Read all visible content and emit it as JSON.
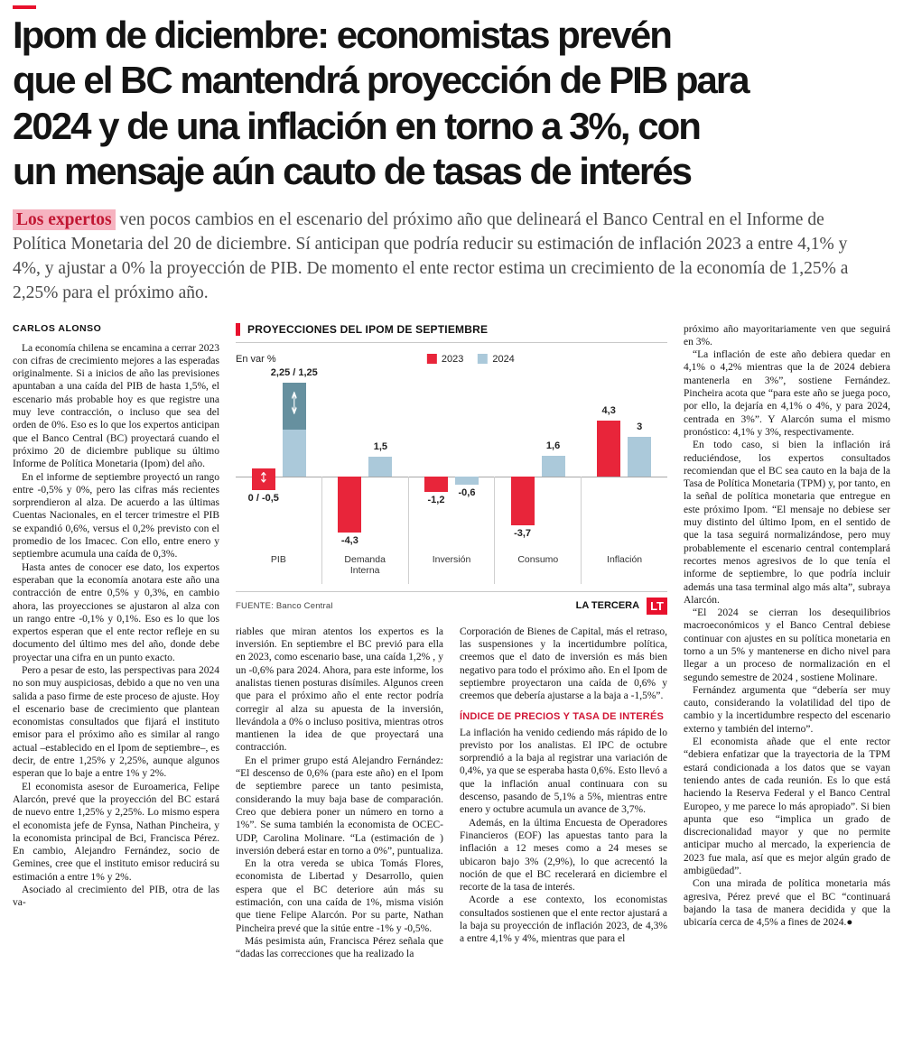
{
  "headline": {
    "lines": [
      "Ipom de diciembre: economistas prevén",
      "que el BC mantendrá proyección de PIB para",
      "2024 y de una inflación en torno a 3%, con",
      "un mensaje aún cauto de tasas de interés"
    ]
  },
  "lede": {
    "highlight": "Los expertos",
    "text": " ven pocos cambios en el escenario del próximo año que delineará el Banco Central en el Informe de Política Monetaria del 20 de diciembre. Sí anticipan que podría reducir su estimación de inflación 2023 a entre 4,1% y 4%, y ajustar a 0% la proyección de PIB. De momento el ente rector estima un crecimiento de la economía de 1,25% a 2,25% para el próximo año."
  },
  "byline": "CARLOS ALONSO",
  "columns": {
    "col1": [
      "La economía chilena se encamina a cerrar 2023 con cifras de crecimiento mejores a las esperadas originalmente. Si a inicios de año las previsiones apuntaban a una caída del PIB de hasta 1,5%, el escenario más probable hoy es que registre una muy leve contracción, o incluso que sea del orden de 0%. Eso es lo que los expertos anticipan que el Banco Central (BC) proyectará cuando el próximo 20 de diciembre publique su último Informe de Política Monetaria (Ipom) del año.",
      "En el informe de septiembre proyectó un rango entre -0,5% y 0%, pero las cifras más recientes sorprendieron al alza. De acuerdo a las últimas Cuentas Nacionales, en el tercer trimestre el PIB se expandió 0,6%, versus el 0,2% previsto con el promedio de los Imacec. Con ello, entre enero y septiembre acumula una caída de 0,3%.",
      "Hasta antes de conocer ese dato, los expertos esperaban que la economía anotara este año una contracción de entre 0,5% y 0,3%, en cambio ahora, las proyecciones se ajustaron al alza con un rango entre -0,1% y 0,1%. Eso es lo que los expertos esperan que el ente rector refleje en su documento del último mes del año, donde debe proyectar una cifra en un punto exacto.",
      "Pero a pesar de esto, las perspectivas para 2024 no son muy auspiciosas, debido a que no ven una salida a paso firme de este proceso de ajuste. Hoy el escenario base de crecimiento que plantean economistas consultados que fijará el instituto emisor para el próximo año es similar al rango actual –establecido en el Ipom de septiembre–, es decir, de entre 1,25% y 2,25%, aunque algunos esperan que lo baje a entre 1% y 2%.",
      "El economista asesor de Euroamerica, Felipe Alarcón, prevé que la proyección del BC estará de nuevo entre 1,25% y 2,25%. Lo mismo espera el economista jefe de Fynsa, Nathan Pincheira, y la economista principal de Bci, Francisca Pérez. En cambio, Alejandro Fernández, socio de Gemines, cree que el instituto emisor reducirá su estimación a entre 1% y 2%.",
      "Asociado al crecimiento del PIB, otra de las va-"
    ],
    "col2": [
      "riables que miran atentos los expertos es la inversión. En septiembre el BC previó para ella en 2023, como escenario base, una caída 1,2% , y un -0,6% para 2024. Ahora, para este informe, los analistas tienen posturas disímiles. Algunos creen que para el próximo año el ente rector podría corregir al alza su apuesta de la inversión, llevándola a 0% o incluso positiva, mientras otros mantienen la idea de que proyectará una contracción.",
      "En el primer grupo está Alejandro Fernández: “El descenso de 0,6% (para este año) en el Ipom de septiembre parece un tanto pesimista, considerando la muy baja base de comparación. Creo que debiera poner un número en torno a 1%”. Se suma también la economista de OCEC-UDP, Carolina Molinare. “La (estimación de ) inversión deberá estar en torno a 0%”, puntualiza.",
      "En la otra vereda se ubica Tomás Flores, economista de Libertad y Desarrollo, quien espera que el BC deteriore aún más su estimación, con una caída de 1%, misma visión que tiene Felipe Alarcón. Por su parte, Nathan Pincheira prevé que la sitúe entre -1% y -0,5%.",
      "Más pesimista aún, Francisca Pérez señala que “dadas las correcciones que ha realizado la"
    ],
    "col3_pre": [
      "Corporación de Bienes de Capital, más el retraso, las suspensiones y la incertidumbre política, creemos que el dato de inversión es más bien negativo para todo el próximo año. En el Ipom de septiembre proyectaron una caída de 0,6% y creemos que debería ajustarse a la baja a -1,5%”."
    ],
    "col3_subhead": "ÍNDICE DE PRECIOS Y TASA DE INTERÉS",
    "col3_post": [
      "La inflación ha venido cediendo más rápido de lo previsto por los analistas. El IPC de octubre sorprendió a la baja al registrar una variación de 0,4%, ya que se esperaba hasta 0,6%. Esto llevó a que la inflación anual continuara con su descenso, pasando de 5,1% a 5%, mientras entre enero y octubre acumula un avance de 3,7%.",
      "Además, en la última Encuesta de Operadores Financieros (EOF) las apuestas tanto para la inflación a 12 meses como a 24 meses se ubicaron bajo 3% (2,9%), lo que acrecentó la noción de que el BC recelerará en diciembre el recorte de la tasa de interés.",
      "Acorde a ese contexto, los economistas consultados sostienen que el ente rector ajustará a la baja su proyección de inflación 2023, de 4,3% a entre 4,1% y 4%, mientras que para el"
    ],
    "col4": [
      "próximo año mayoritariamente ven que seguirá en 3%.",
      "“La inflación de este año debiera quedar en 4,1% o 4,2% mientras que la de 2024 debiera mantenerla en 3%”, sostiene Fernández. Pincheira acota que “para este año se juega poco, por ello, la dejaría en 4,1% o 4%, y para 2024, centrada en 3%”. Y Alarcón suma el mismo pronóstico: 4,1% y 3%, respectivamente.",
      "En todo caso, si bien la inflación irá reduciéndose, los expertos consultados recomiendan que el BC sea cauto en la baja de la Tasa de Política Monetaria (TPM) y, por tanto, en la señal de política monetaria que entregue en este próximo Ipom. “El mensaje no debiese ser muy distinto del último Ipom, en el sentido de que la tasa seguirá normalizándose, pero muy probablemente el escenario central contemplará recortes menos agresivos de lo que tenía el informe de septiembre, lo que podría incluir además una tasa terminal algo más alta”, subraya Alarcón.",
      "“El 2024 se cierran los desequilibrios macroeconómicos y el Banco Central debiese continuar con ajustes en su política monetaria en torno a un 5% y mantenerse en dicho nivel para llegar a un proceso de normalización en el segundo semestre de 2024 , sostiene Molinare.",
      "Fernández argumenta que “debería ser muy cauto, considerando la volatilidad del tipo de cambio y la incertidumbre respecto del escenario externo y también del interno”.",
      "El economista añade que el ente rector “debiera enfatizar que la trayectoria de la TPM estará condicionada a los datos que se vayan teniendo antes de cada reunión. Es lo que está haciendo la Reserva Federal y el Banco Central Europeo, y me parece lo más apropiado”. Si bien apunta que eso “implica un grado de discrecionalidad mayor y que no permite anticipar mucho al mercado, la experiencia de 2023 fue mala, así que es mejor algún grado de ambigüedad”.",
      "Con una mirada de política monetaria más agresiva, Pérez prevé que el BC “continuará bajando la tasa de manera decidida y que la ubicaría cerca de 4,5% a fines de 2024.●"
    ]
  },
  "chart_data": {
    "type": "bar",
    "title": "PROYECCIONES DEL IPOM DE SEPTIEMBRE",
    "unit_label": "En var %",
    "categories": [
      "PIB",
      "Demanda Interna",
      "Inversión",
      "Consumo",
      "Inflación"
    ],
    "series": [
      {
        "name": "2023",
        "color": "#e8253a"
      },
      {
        "name": "2024",
        "color": "#abc9da",
        "range_dark_color": "#66909f"
      }
    ],
    "groups": [
      {
        "label": "PIB",
        "bars": [
          {
            "series": "2023",
            "style": "range-zero",
            "range": [
              0,
              -0.5
            ],
            "label": "0 / -0,5"
          },
          {
            "series": "2024",
            "style": "range-up",
            "range": [
              2.25,
              1.25
            ],
            "label": "2,25 / 1,25"
          }
        ]
      },
      {
        "label": "Demanda Interna",
        "bars": [
          {
            "series": "2023",
            "value": -4.3,
            "label": "-4,3"
          },
          {
            "series": "2024",
            "value": 1.5,
            "label": "1,5"
          }
        ]
      },
      {
        "label": "Inversión",
        "bars": [
          {
            "series": "2023",
            "value": -1.2,
            "label": "-1,2"
          },
          {
            "series": "2024",
            "value": -0.6,
            "label": "-0,6"
          }
        ]
      },
      {
        "label": "Consumo",
        "bars": [
          {
            "series": "2023",
            "value": -3.7,
            "label": "-3,7"
          },
          {
            "series": "2024",
            "value": 1.6,
            "label": "1,6"
          }
        ]
      },
      {
        "label": "Inflación",
        "bars": [
          {
            "series": "2023",
            "value": 4.3,
            "label": "4,3"
          },
          {
            "series": "2024",
            "value": 3,
            "label": "3"
          }
        ]
      }
    ],
    "ylim": [
      -4.8,
      4.8
    ],
    "baseline": 0,
    "grid": false,
    "legend_position": "top-center",
    "source": "FUENTE: Banco Central",
    "credit": "LA TERCERA",
    "logo_text": "LT"
  }
}
